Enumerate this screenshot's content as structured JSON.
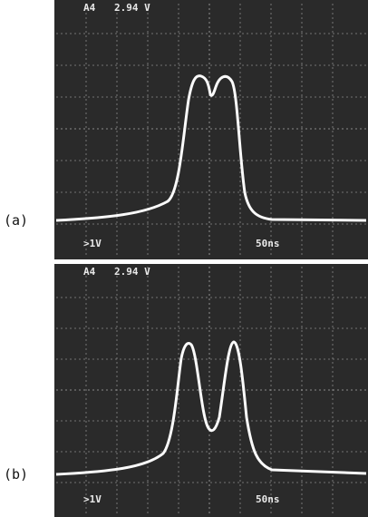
{
  "panels": [
    {
      "label": "(a)",
      "channel": "A4",
      "level": "2.94 V",
      "volts_div": ">1V",
      "time_div": "50ns"
    },
    {
      "label": "(b)",
      "channel": "A4",
      "level": "2.94 V",
      "volts_div": ">1V",
      "time_div": "50ns"
    }
  ]
}
